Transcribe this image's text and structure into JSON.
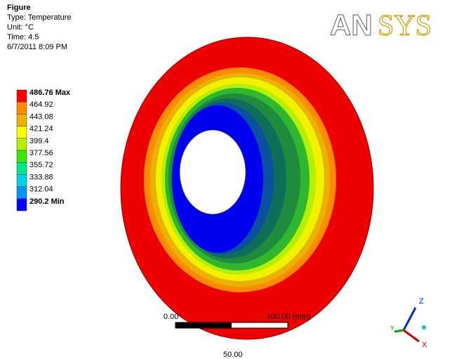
{
  "header": {
    "title": "Figure",
    "type": "Type: Temperature",
    "unit": "Unit: °C",
    "time": "Time: 4.5",
    "date": "6/7/2011 8:09 PM"
  },
  "logo": {
    "part1": "AN",
    "part2": "SYS"
  },
  "legend": [
    {
      "label": "486.76 Max",
      "color": "#ff0000"
    },
    {
      "label": "464.92",
      "color": "#ff8c00"
    },
    {
      "label": "443.08",
      "color": "#e8b400"
    },
    {
      "label": "421.24",
      "color": "#ffff00"
    },
    {
      "label": "399.4",
      "color": "#b4f000"
    },
    {
      "label": "377.56",
      "color": "#3ce600"
    },
    {
      "label": "355.72",
      "color": "#00e68c"
    },
    {
      "label": "333.88",
      "color": "#00d2e6"
    },
    {
      "label": "312.04",
      "color": "#0096ff"
    },
    {
      "label": "290.2 Min",
      "color": "#0000ff"
    }
  ],
  "scale": {
    "start": "0.00",
    "end": "100.00 (mm)",
    "mid": "50.00"
  },
  "triad": {
    "z": "Z",
    "y": "Y",
    "x": "X"
  }
}
